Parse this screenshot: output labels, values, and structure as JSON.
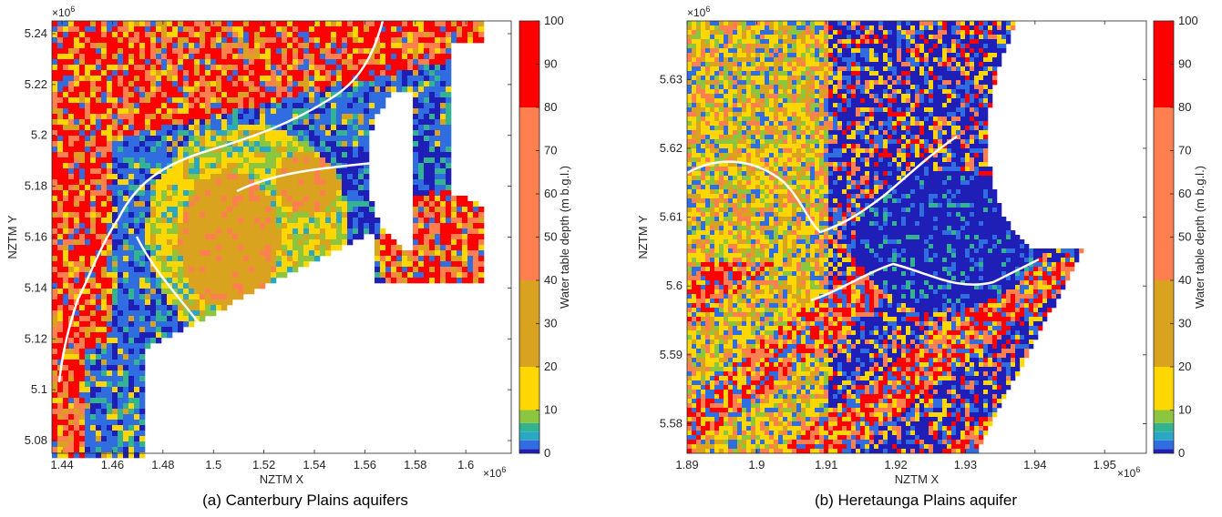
{
  "chart_data": [
    {
      "type": "heatmap",
      "caption": "(a) Canterbury Plains aquifers",
      "xlabel": "NZTM X",
      "ylabel": "NZTM Y",
      "x_multiplier": "×10^6",
      "y_multiplier": "×10^6",
      "xlim": [
        1.436,
        1.618
      ],
      "ylim": [
        5.075,
        5.245
      ],
      "xticks": [
        1.44,
        1.46,
        1.48,
        1.5,
        1.52,
        1.54,
        1.56,
        1.58,
        1.6
      ],
      "xtick_labels": [
        "1.44",
        "1.46",
        "1.48",
        "1.5",
        "1.52",
        "1.54",
        "1.56",
        "1.58",
        "1.6"
      ],
      "yticks": [
        5.08,
        5.1,
        5.12,
        5.14,
        5.16,
        5.18,
        5.2,
        5.22,
        5.24
      ],
      "ytick_labels": [
        "5.08",
        "5.1",
        "5.12",
        "5.14",
        "5.16",
        "5.18",
        "5.2",
        "5.22",
        "5.24"
      ],
      "colorbar": {
        "label": "Water table depth (m b.g.l.)",
        "ticks": [
          0,
          10,
          20,
          30,
          40,
          50,
          60,
          70,
          80,
          90,
          100
        ],
        "tick_labels": [
          "0",
          "10",
          "20",
          "30",
          "40",
          "50",
          "60",
          "70",
          "80",
          "90",
          "100"
        ]
      },
      "grid": false
    },
    {
      "type": "heatmap",
      "caption": "(b) Heretaunga Plains aquifer",
      "xlabel": "NZTM X",
      "ylabel": "NZTM Y",
      "x_multiplier": "×10^6",
      "y_multiplier": "×10^6",
      "xlim": [
        1.89,
        1.956
      ],
      "ylim": [
        5.5757,
        5.6385
      ],
      "xticks": [
        1.89,
        1.9,
        1.91,
        1.92,
        1.93,
        1.94,
        1.95
      ],
      "xtick_labels": [
        "1.89",
        "1.9",
        "1.91",
        "1.92",
        "1.93",
        "1.94",
        "1.95"
      ],
      "yticks": [
        5.58,
        5.59,
        5.6,
        5.61,
        5.62,
        5.63
      ],
      "ytick_labels": [
        "5.58",
        "5.59",
        "5.6",
        "5.61",
        "5.62",
        "5.63"
      ],
      "colorbar": {
        "label": "Water table depth (m b.g.l.)",
        "ticks": [
          0,
          10,
          20,
          30,
          40,
          50,
          60,
          70,
          80,
          90,
          100
        ],
        "tick_labels": [
          "0",
          "10",
          "20",
          "30",
          "40",
          "50",
          "60",
          "70",
          "80",
          "90",
          "100"
        ]
      },
      "grid": false
    }
  ],
  "colorbar_classes": [
    {
      "from": 0,
      "to": 1,
      "color": "#1f1fb8"
    },
    {
      "from": 1,
      "to": 3,
      "color": "#2f6de0"
    },
    {
      "from": 3,
      "to": 5,
      "color": "#2aa7c4"
    },
    {
      "from": 5,
      "to": 7,
      "color": "#33b38f"
    },
    {
      "from": 7,
      "to": 10,
      "color": "#8cc63f"
    },
    {
      "from": 10,
      "to": 20,
      "color": "#ffd700"
    },
    {
      "from": 20,
      "to": 40,
      "color": "#d9a21f"
    },
    {
      "from": 40,
      "to": 80,
      "color": "#ff7f50"
    },
    {
      "from": 80,
      "to": 100,
      "color": "#ff0000"
    }
  ]
}
